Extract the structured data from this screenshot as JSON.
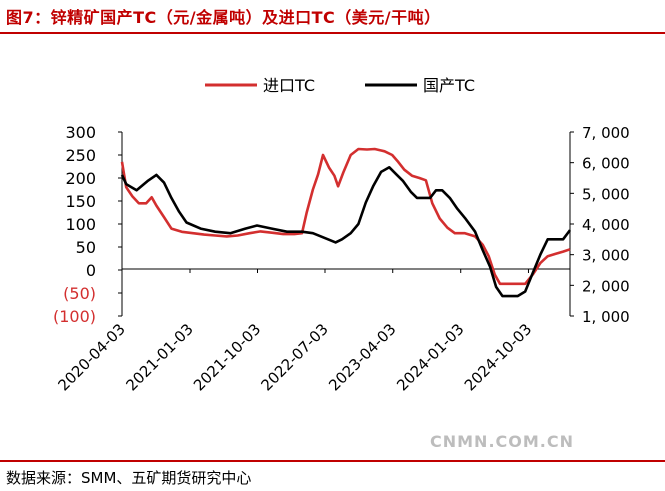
{
  "header": {
    "title": "图7：锌精矿国产TC（元/金属吨）及进口TC（美元/干吨）"
  },
  "footer": {
    "source": "数据来源：SMM、五矿期货研究中心",
    "watermark": "CNMN.COM.CN"
  },
  "colors": {
    "accent": "#c00000",
    "import_series": "#d32f2f",
    "domestic_series": "#000000"
  },
  "chart_data": {
    "type": "line",
    "title": "图7：锌精矿国产TC（元/金属吨）及进口TC（美元/干吨）",
    "legend_position": "top-center",
    "grid": false,
    "x_tick_labels": [
      "2020-04-03",
      "2021-01-03",
      "2021-10-03",
      "2022-07-03",
      "2023-04-03",
      "2024-01-03",
      "2024-10-03"
    ],
    "xlim": [
      "2020-04-03",
      "2025-03-20"
    ],
    "y_left": {
      "range": [
        -100,
        300
      ],
      "ticks": [
        -100,
        -50,
        0,
        50,
        100,
        150,
        200,
        250,
        300
      ],
      "tick_labels": [
        "(100)",
        "(50)",
        "0",
        "50",
        "100",
        "150",
        "200",
        "250",
        "300"
      ]
    },
    "y_right": {
      "range": [
        1000,
        7000
      ],
      "ticks": [
        1000,
        2000,
        3000,
        4000,
        5000,
        6000,
        7000
      ],
      "tick_labels": [
        "1, 000",
        "2, 000",
        "3, 000",
        "4, 000",
        "5, 000",
        "6, 000",
        "7, 000"
      ]
    },
    "series": [
      {
        "name": "进口TC",
        "axis": "left",
        "color": "#d32f2f",
        "points": [
          [
            "2020-04-03",
            235
          ],
          [
            "2020-04-20",
            180
          ],
          [
            "2020-05-15",
            160
          ],
          [
            "2020-06-10",
            145
          ],
          [
            "2020-07-10",
            145
          ],
          [
            "2020-08-01",
            158
          ],
          [
            "2020-08-20",
            140
          ],
          [
            "2020-09-20",
            115
          ],
          [
            "2020-10-20",
            90
          ],
          [
            "2020-12-01",
            83
          ],
          [
            "2021-01-15",
            80
          ],
          [
            "2021-03-01",
            77
          ],
          [
            "2021-04-15",
            75
          ],
          [
            "2021-06-01",
            73
          ],
          [
            "2021-07-15",
            75
          ],
          [
            "2021-09-01",
            80
          ],
          [
            "2021-10-15",
            84
          ],
          [
            "2021-11-30",
            81
          ],
          [
            "2022-01-15",
            78
          ],
          [
            "2022-03-01",
            78
          ],
          [
            "2022-04-01",
            80
          ],
          [
            "2022-04-20",
            125
          ],
          [
            "2022-05-15",
            175
          ],
          [
            "2022-06-05",
            208
          ],
          [
            "2022-06-25",
            250
          ],
          [
            "2022-07-20",
            222
          ],
          [
            "2022-08-10",
            205
          ],
          [
            "2022-08-25",
            182
          ],
          [
            "2022-09-15",
            212
          ],
          [
            "2022-10-15",
            250
          ],
          [
            "2022-11-15",
            263
          ],
          [
            "2022-12-20",
            262
          ],
          [
            "2023-01-20",
            263
          ],
          [
            "2023-03-01",
            258
          ],
          [
            "2023-04-01",
            250
          ],
          [
            "2023-04-25",
            235
          ],
          [
            "2023-05-20",
            218
          ],
          [
            "2023-06-20",
            205
          ],
          [
            "2023-07-20",
            200
          ],
          [
            "2023-08-15",
            195
          ],
          [
            "2023-09-10",
            145
          ],
          [
            "2023-10-10",
            112
          ],
          [
            "2023-11-10",
            92
          ],
          [
            "2023-12-10",
            80
          ],
          [
            "2024-01-20",
            80
          ],
          [
            "2024-03-01",
            73
          ],
          [
            "2024-04-01",
            55
          ],
          [
            "2024-04-25",
            30
          ],
          [
            "2024-05-20",
            -10
          ],
          [
            "2024-06-10",
            -30
          ],
          [
            "2024-07-15",
            -30
          ],
          [
            "2024-08-20",
            -30
          ],
          [
            "2024-09-20",
            -30
          ],
          [
            "2024-10-20",
            -10
          ],
          [
            "2024-11-20",
            15
          ],
          [
            "2024-12-20",
            30
          ],
          [
            "2025-01-20",
            35
          ],
          [
            "2025-02-20",
            40
          ],
          [
            "2025-03-20",
            45
          ]
        ]
      },
      {
        "name": "国产TC",
        "axis": "right",
        "color": "#000000",
        "points": [
          [
            "2020-04-03",
            5600
          ],
          [
            "2020-04-20",
            5300
          ],
          [
            "2020-06-01",
            5100
          ],
          [
            "2020-07-15",
            5400
          ],
          [
            "2020-08-20",
            5600
          ],
          [
            "2020-09-20",
            5350
          ],
          [
            "2020-10-20",
            4850
          ],
          [
            "2020-11-20",
            4400
          ],
          [
            "2020-12-20",
            4050
          ],
          [
            "2021-02-15",
            3850
          ],
          [
            "2021-04-15",
            3750
          ],
          [
            "2021-06-15",
            3700
          ],
          [
            "2021-08-15",
            3850
          ],
          [
            "2021-10-01",
            3950
          ],
          [
            "2021-11-30",
            3850
          ],
          [
            "2022-01-30",
            3750
          ],
          [
            "2022-04-01",
            3750
          ],
          [
            "2022-05-15",
            3700
          ],
          [
            "2022-07-15",
            3500
          ],
          [
            "2022-08-15",
            3400
          ],
          [
            "2022-09-10",
            3500
          ],
          [
            "2022-10-15",
            3700
          ],
          [
            "2022-11-15",
            4000
          ],
          [
            "2022-12-15",
            4700
          ],
          [
            "2023-01-15",
            5250
          ],
          [
            "2023-02-15",
            5700
          ],
          [
            "2023-03-20",
            5850
          ],
          [
            "2023-04-20",
            5600
          ],
          [
            "2023-05-15",
            5400
          ],
          [
            "2023-06-15",
            5050
          ],
          [
            "2023-07-10",
            4850
          ],
          [
            "2023-08-10",
            4850
          ],
          [
            "2023-09-01",
            4850
          ],
          [
            "2023-09-25",
            5100
          ],
          [
            "2023-10-20",
            5100
          ],
          [
            "2023-11-20",
            4850
          ],
          [
            "2023-12-20",
            4500
          ],
          [
            "2024-01-20",
            4200
          ],
          [
            "2024-03-01",
            3750
          ],
          [
            "2024-04-01",
            3150
          ],
          [
            "2024-05-01",
            2600
          ],
          [
            "2024-05-25",
            1950
          ],
          [
            "2024-06-20",
            1650
          ],
          [
            "2024-07-20",
            1650
          ],
          [
            "2024-08-20",
            1650
          ],
          [
            "2024-09-20",
            1800
          ],
          [
            "2024-10-20",
            2400
          ],
          [
            "2024-11-20",
            3000
          ],
          [
            "2024-12-20",
            3500
          ],
          [
            "2025-01-20",
            3500
          ],
          [
            "2025-02-20",
            3500
          ],
          [
            "2025-03-20",
            3800
          ]
        ]
      }
    ]
  }
}
